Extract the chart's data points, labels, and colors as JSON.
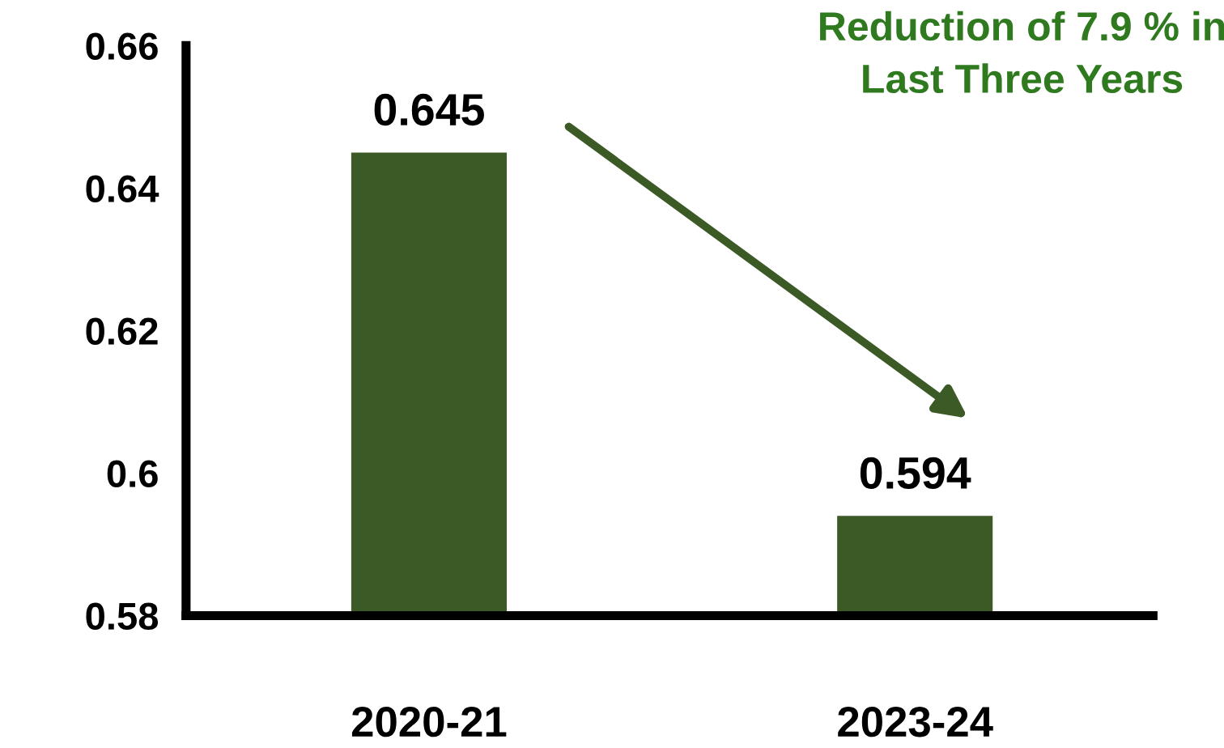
{
  "chart_data": {
    "type": "bar",
    "categories": [
      "2020-21",
      "2023-24"
    ],
    "values": [
      0.645,
      0.594
    ],
    "color": "#3b5a26",
    "data_labels": true,
    "ylim": [
      0.58,
      0.66
    ],
    "yticks": [
      0.58,
      0.6,
      0.62,
      0.64,
      0.66
    ],
    "grid": false,
    "annotations": [
      "Reduction of 7.9 % in\nLast Three Years"
    ]
  }
}
